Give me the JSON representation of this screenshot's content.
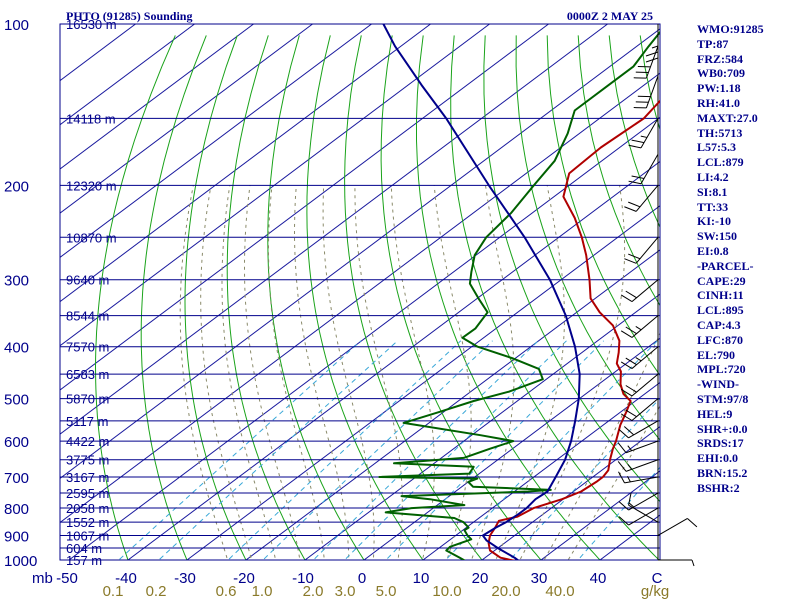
{
  "header": {
    "station": "PHTO (91285) Sounding",
    "time": "0000Z  2 MAY 25"
  },
  "indices": [
    "WMO:91285",
    "TP:87",
    "FRZ:584",
    "WB0:709",
    "PW:1.18",
    "RH:41.0",
    "MAXT:27.0",
    "TH:5713",
    "L57:5.3",
    "LCL:879",
    "LI:4.2",
    "SI:8.1",
    "TT:33",
    "KI:-10",
    "SW:150",
    "EI:0.8",
    "-PARCEL-",
    "CAPE:29",
    "CINH:11",
    "LCL:895",
    "CAP:4.3",
    "LFC:870",
    "EL:790",
    "MPL:720",
    "-WIND-",
    "STM:97/8",
    "HEL:9",
    "SHR+:0.0",
    "SRDS:17",
    "EHI:0.0",
    "BRN:15.2",
    "BSHR:2"
  ],
  "chart_data": {
    "type": "line",
    "title": "PHTO (91285) Sounding",
    "xlabel": "",
    "ylabel": "mb",
    "xlim": [
      -50,
      50
    ],
    "ylim": [
      1000,
      100
    ],
    "pressure_ticks": [
      "100",
      "200",
      "300",
      "400",
      "500",
      "600",
      "700",
      "800",
      "900",
      "1000"
    ],
    "temperature_ticks": [
      "-50",
      "-40",
      "-30",
      "-20",
      "-10",
      "0",
      "10",
      "20",
      "30",
      "40",
      "C"
    ],
    "mixing_ratio_labels": [
      "0.1",
      "0.2",
      "0.6",
      "1.0",
      "2.0",
      "3.0",
      "5.0",
      "10.0",
      "20.0",
      "40.0",
      "g/kg"
    ],
    "height_labels": [
      {
        "p": 100,
        "label": "16530 m"
      },
      {
        "p": 150,
        "label": "14118 m"
      },
      {
        "p": 200,
        "label": "12320 m"
      },
      {
        "p": 250,
        "label": "10870 m"
      },
      {
        "p": 300,
        "label": "9640 m"
      },
      {
        "p": 350,
        "label": "8544 m"
      },
      {
        "p": 400,
        "label": "7570 m"
      },
      {
        "p": 450,
        "label": "6583 m"
      },
      {
        "p": 500,
        "label": "5870 m"
      },
      {
        "p": 550,
        "label": "5117 m"
      },
      {
        "p": 600,
        "label": "4422 m"
      },
      {
        "p": 650,
        "label": "3775 m"
      },
      {
        "p": 700,
        "label": "3167 m"
      },
      {
        "p": 750,
        "label": "2595 m"
      },
      {
        "p": 800,
        "label": "2058 m"
      },
      {
        "p": 850,
        "label": "1552 m"
      },
      {
        "p": 900,
        "label": "1067 m"
      },
      {
        "p": 950,
        "label": "604 m"
      },
      {
        "p": 1000,
        "label": "157 m"
      }
    ],
    "series": [
      {
        "color": "#b00000",
        "points": [
          [
            1009,
            27
          ],
          [
            990,
            22.6
          ],
          [
            960,
            19.2
          ],
          [
            930,
            17.3
          ],
          [
            900,
            15.8
          ],
          [
            870,
            14.9
          ],
          [
            845,
            14
          ],
          [
            830,
            16.2
          ],
          [
            800,
            17
          ],
          [
            770,
            19.8
          ],
          [
            745,
            21.3
          ],
          [
            715,
            21.7
          ],
          [
            700,
            21.7
          ],
          [
            680,
            21.1
          ],
          [
            650,
            19
          ],
          [
            620,
            17
          ],
          [
            600,
            15.8
          ],
          [
            560,
            12.9
          ],
          [
            530,
            11
          ],
          [
            505,
            9.2
          ],
          [
            490,
            6.4
          ],
          [
            470,
            3.7
          ],
          [
            445,
            0.9
          ],
          [
            430,
            -1.6
          ],
          [
            410,
            -3.8
          ],
          [
            390,
            -6.3
          ],
          [
            365,
            -10.9
          ],
          [
            345,
            -16.1
          ],
          [
            325,
            -20.8
          ],
          [
            300,
            -25.2
          ],
          [
            270,
            -31.3
          ],
          [
            250,
            -36.1
          ],
          [
            230,
            -41.7
          ],
          [
            210,
            -48.4
          ],
          [
            190,
            -52.7
          ],
          [
            170,
            -53.2
          ],
          [
            150,
            -52.5
          ],
          [
            130,
            -54.8
          ],
          [
            115,
            -57.6
          ],
          [
            100,
            -60
          ]
        ]
      },
      {
        "color": "#006000",
        "points": [
          [
            1009,
            18
          ],
          [
            990,
            15.7
          ],
          [
            960,
            11.8
          ],
          [
            945,
            11.6
          ],
          [
            915,
            13.5
          ],
          [
            900,
            12
          ],
          [
            880,
            10.3
          ],
          [
            870,
            10.4
          ],
          [
            850,
            8.3
          ],
          [
            835,
            5.8
          ],
          [
            815,
            -7.1
          ],
          [
            800,
            -3.7
          ],
          [
            790,
            4.6
          ],
          [
            770,
            -2.6
          ],
          [
            760,
            -8.1
          ],
          [
            745,
            12.3
          ],
          [
            740,
            15.8
          ],
          [
            730,
            1.9
          ],
          [
            715,
            0
          ],
          [
            705,
            0.8
          ],
          [
            700,
            -16.2
          ],
          [
            690,
            -1.7
          ],
          [
            670,
            -2.5
          ],
          [
            660,
            -16.8
          ],
          [
            645,
            -6.2
          ],
          [
            620,
            -3.8
          ],
          [
            600,
            -1.6
          ],
          [
            585,
            -8.5
          ],
          [
            555,
            -24.3
          ],
          [
            530,
            -20.8
          ],
          [
            505,
            -17.4
          ],
          [
            485,
            -13.5
          ],
          [
            460,
            -10.6
          ],
          [
            440,
            -13.6
          ],
          [
            420,
            -20.6
          ],
          [
            400,
            -29
          ],
          [
            385,
            -33.6
          ],
          [
            370,
            -33.5
          ],
          [
            345,
            -35.1
          ],
          [
            325,
            -39.8
          ],
          [
            305,
            -44.6
          ],
          [
            290,
            -47
          ],
          [
            270,
            -50.2
          ],
          [
            250,
            -52.3
          ],
          [
            225,
            -53.6
          ],
          [
            200,
            -56
          ],
          [
            180,
            -58
          ],
          [
            160,
            -62
          ],
          [
            145,
            -66
          ],
          [
            130,
            -66
          ],
          [
            120,
            -66
          ],
          [
            110,
            -68
          ],
          [
            100,
            -70
          ]
        ]
      },
      {
        "color": "#00008b",
        "points": [
          [
            1009,
            27
          ],
          [
            990,
            25
          ],
          [
            950,
            20
          ],
          [
            920,
            16.4
          ],
          [
            900,
            14.6
          ],
          [
            870,
            15
          ],
          [
            850,
            15.5
          ],
          [
            820,
            15.8
          ],
          [
            800,
            15.8
          ],
          [
            770,
            15.3
          ],
          [
            745,
            15.6
          ],
          [
            700,
            13.7
          ],
          [
            650,
            11.4
          ],
          [
            600,
            8.2
          ],
          [
            550,
            4.3
          ],
          [
            500,
            -0.1
          ],
          [
            450,
            -5.5
          ],
          [
            400,
            -12.5
          ],
          [
            350,
            -21.1
          ],
          [
            300,
            -31.9
          ],
          [
            250,
            -45.8
          ],
          [
            200,
            -63.6
          ],
          [
            150,
            -86
          ],
          [
            130,
            -97.7
          ],
          [
            110,
            -111
          ],
          [
            100,
            -118
          ]
        ]
      }
    ],
    "wind_barbs": [
      {
        "p": 1000,
        "dir": 90,
        "spd": 5
      },
      {
        "p": 900,
        "dir": 60,
        "spd": 10
      },
      {
        "p": 850,
        "dir": 300,
        "spd": 10
      },
      {
        "p": 800,
        "dir": 240,
        "spd": 10
      },
      {
        "p": 750,
        "dir": 240,
        "spd": 15
      },
      {
        "p": 700,
        "dir": 260,
        "spd": 15
      },
      {
        "p": 650,
        "dir": 250,
        "spd": 15
      },
      {
        "p": 600,
        "dir": 250,
        "spd": 15
      },
      {
        "p": 550,
        "dir": 240,
        "spd": 20
      },
      {
        "p": 500,
        "dir": 230,
        "spd": 20
      },
      {
        "p": 450,
        "dir": 230,
        "spd": 20
      },
      {
        "p": 400,
        "dir": 230,
        "spd": 25
      },
      {
        "p": 350,
        "dir": 230,
        "spd": 25
      },
      {
        "p": 300,
        "dir": 230,
        "spd": 20
      },
      {
        "p": 250,
        "dir": 220,
        "spd": 20
      },
      {
        "p": 200,
        "dir": 220,
        "spd": 20
      },
      {
        "p": 175,
        "dir": 210,
        "spd": 20
      },
      {
        "p": 150,
        "dir": 210,
        "spd": 25
      },
      {
        "p": 125,
        "dir": 200,
        "spd": 30
      },
      {
        "p": 110,
        "dir": 200,
        "spd": 30
      },
      {
        "p": 100,
        "dir": 180,
        "spd": 25
      }
    ]
  }
}
